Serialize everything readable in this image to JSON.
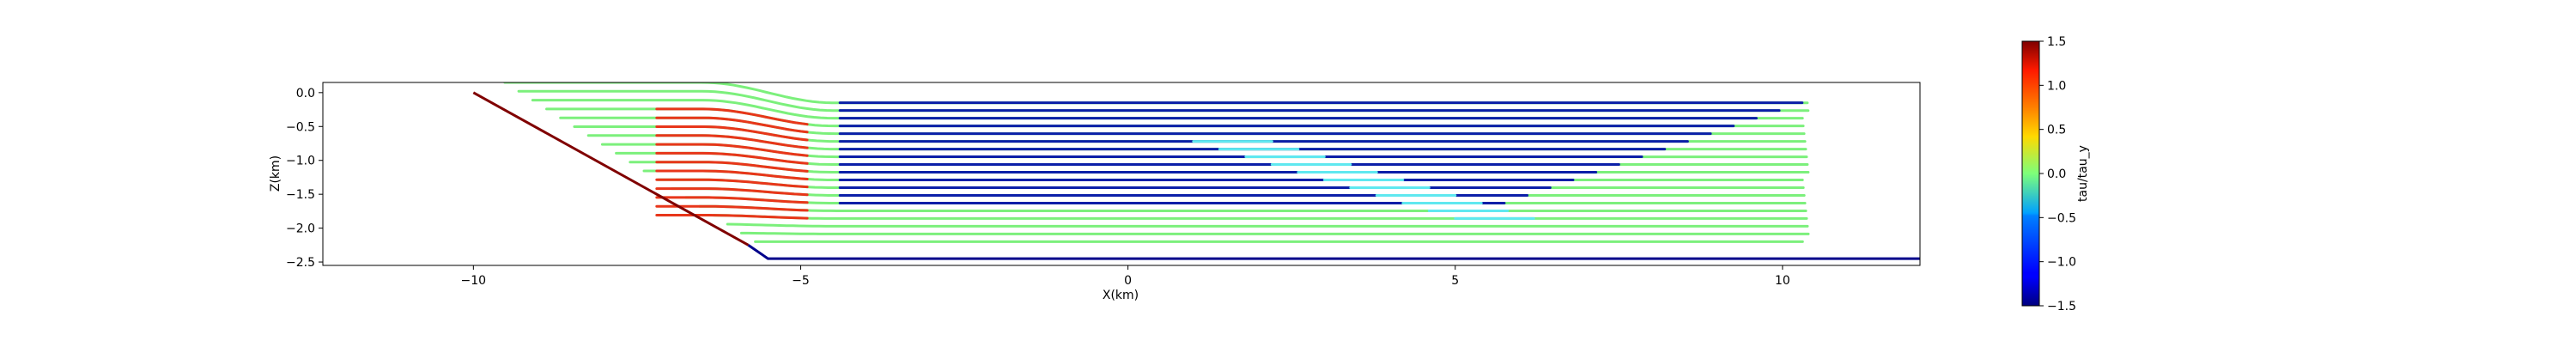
{
  "chart_data": {
    "type": "line",
    "title": "",
    "xlabel": "X(km)",
    "ylabel": "Z(km)",
    "xlim": [
      -12.3,
      12.1
    ],
    "ylim": [
      -2.55,
      0.15
    ],
    "xticks": [
      -10,
      -5,
      0,
      5,
      10
    ],
    "yticks": [
      0.0,
      -0.5,
      -1.0,
      -1.5,
      -2.0,
      -2.5
    ],
    "xtick_labels": [
      "−10",
      "−5",
      "0",
      "5",
      "10"
    ],
    "ytick_labels": [
      "0.0",
      "−0.5",
      "−1.0",
      "−1.5",
      "−2.0",
      "−2.5"
    ],
    "colorbar": {
      "label": "tau/tau_y",
      "range": [
        -1.5,
        1.5
      ],
      "ticks": [
        1.5,
        1.0,
        0.5,
        0.0,
        -0.5,
        -1.0,
        -1.5
      ],
      "tick_labels": [
        "1.5",
        "1.0",
        "0.5",
        "0.0",
        "−0.5",
        "−1.0",
        "−1.5"
      ],
      "colormap": "jet"
    },
    "boundaries": [
      {
        "name": "fault",
        "color": "#800000",
        "x": [
          -10.0,
          -5.8
        ],
        "y": [
          0.0,
          -2.25
        ]
      },
      {
        "name": "base",
        "color": "#00008b",
        "x": [
          -5.8,
          -5.5,
          -4.5,
          12.1
        ],
        "y": [
          -2.25,
          -2.45,
          -2.45,
          -2.45
        ]
      }
    ],
    "streamline_summary": {
      "rows": 19,
      "z_top": -0.15,
      "z_bottom": -2.2,
      "x_start": -11.0,
      "x_end": 10.4,
      "flat_colors": {
        "green": "#7cf07c",
        "red": "#e8361a",
        "blue": "#0b1fa8",
        "cyan": "#5fe8f0"
      }
    }
  }
}
